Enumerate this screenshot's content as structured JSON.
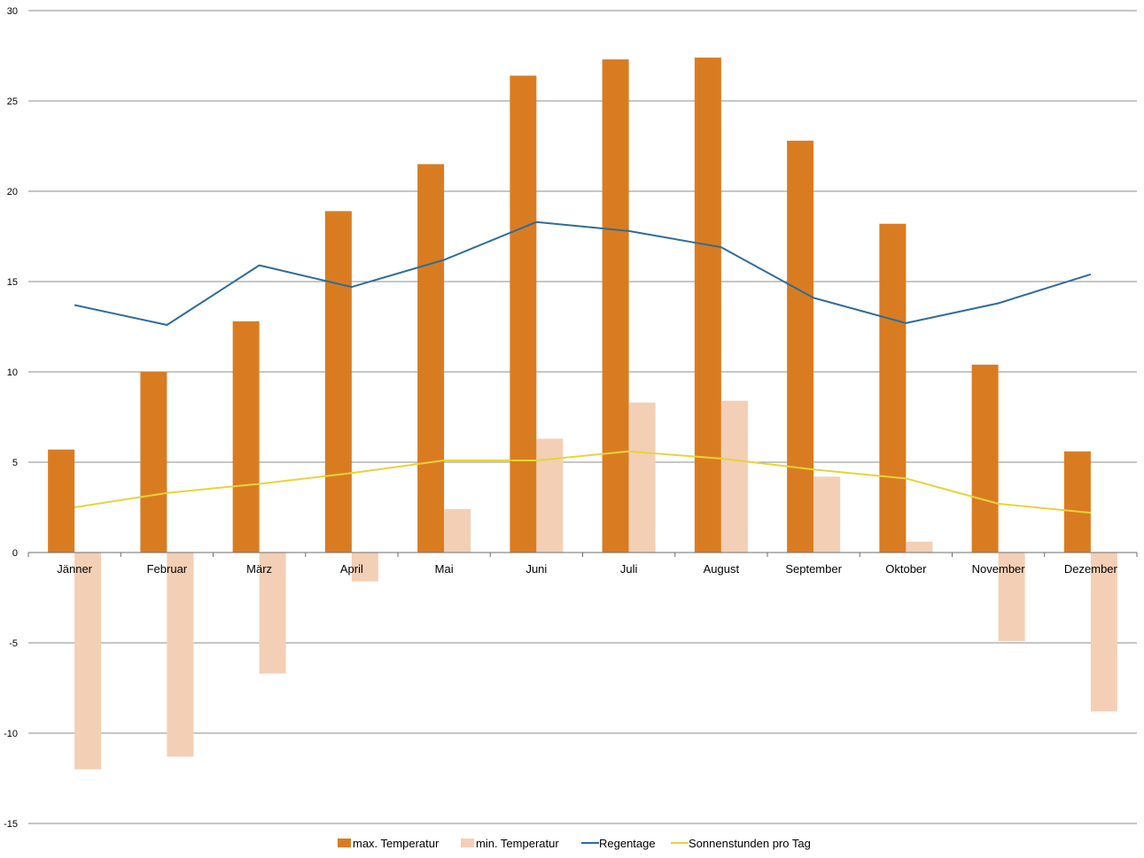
{
  "chart_data": {
    "type": "bar",
    "categories": [
      "Jänner",
      "Februar",
      "März",
      "April",
      "Mai",
      "Juni",
      "Juli",
      "August",
      "September",
      "Oktober",
      "November",
      "Dezember"
    ],
    "series": [
      {
        "name": "max. Temperatur",
        "type": "bar",
        "color": "#d97c21",
        "values": [
          5.7,
          10.0,
          12.8,
          18.9,
          21.5,
          26.4,
          27.3,
          27.4,
          22.8,
          18.2,
          10.4,
          5.6
        ]
      },
      {
        "name": "min. Temperatur",
        "type": "bar",
        "color": "#f3cfb5",
        "values": [
          -12.0,
          -11.3,
          -6.7,
          -1.6,
          2.4,
          6.3,
          8.3,
          8.4,
          4.2,
          0.6,
          -4.9,
          -8.8
        ]
      },
      {
        "name": "Regentage",
        "type": "line",
        "color": "#2e6c9b",
        "values": [
          13.7,
          12.6,
          15.9,
          14.7,
          16.2,
          18.3,
          17.8,
          16.9,
          14.1,
          12.7,
          13.8,
          15.4
        ]
      },
      {
        "name": "Sonnenstunden pro Tag",
        "type": "line",
        "color": "#e8d33a",
        "values": [
          2.5,
          3.3,
          3.8,
          4.4,
          5.1,
          5.1,
          5.6,
          5.2,
          4.6,
          4.1,
          2.7,
          2.2
        ]
      }
    ],
    "ylim": [
      -15,
      30
    ],
    "yticks": [
      -15,
      -10,
      -5,
      0,
      5,
      10,
      15,
      20,
      25,
      30
    ],
    "ytick_labels": [
      "-15",
      "-10",
      "-5",
      "0",
      "5",
      "10",
      "15",
      "20",
      "25",
      "30"
    ],
    "grid": true,
    "legend_position": "bottom"
  }
}
